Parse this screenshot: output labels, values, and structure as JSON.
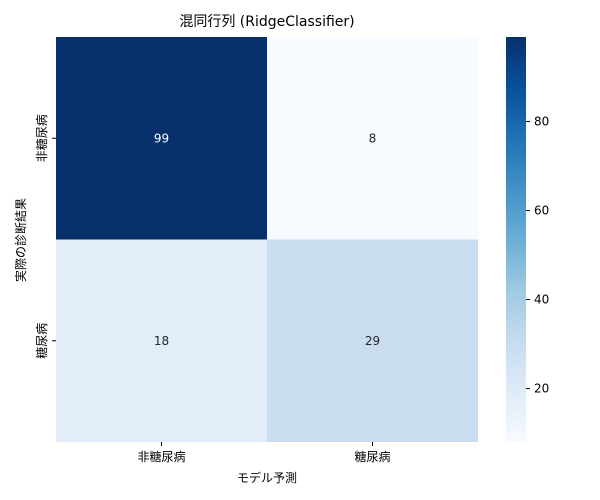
{
  "chart_data": {
    "type": "heatmap",
    "title": "混同行列 (RidgeClassifier)",
    "xlabel": "モデル予測",
    "ylabel": "実際の診断結果",
    "x_categories": [
      "非糖尿病",
      "糖尿病"
    ],
    "y_categories": [
      "非糖尿病",
      "糖尿病"
    ],
    "values": [
      [
        99,
        8
      ],
      [
        18,
        29
      ]
    ],
    "colormap": "Blues",
    "colorbar": {
      "range": [
        8,
        99
      ],
      "ticks": [
        20,
        40,
        60,
        80
      ]
    },
    "grid": false
  }
}
